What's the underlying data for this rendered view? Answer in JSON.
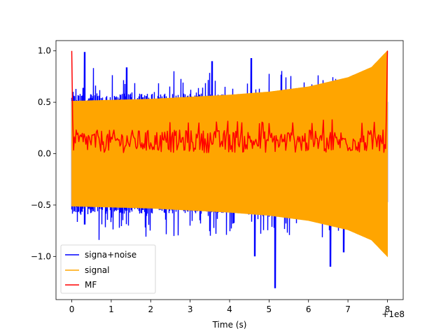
{
  "chart_data": {
    "type": "line",
    "title": "",
    "xlabel": "Time (s)",
    "ylabel": "",
    "x_offset_label": "+1e8",
    "xlim": [
      -0.4,
      8.4
    ],
    "ylim": [
      -1.42,
      1.1
    ],
    "x_ticks": [
      0,
      1,
      2,
      3,
      4,
      5,
      6,
      7,
      8
    ],
    "y_ticks": [
      1.0,
      0.5,
      0.0,
      -0.5,
      -1.0
    ],
    "y_tick_labels": [
      "1.0",
      "0.5",
      "0.0",
      "−0.5",
      "−1.0"
    ],
    "legend_position": "lower-left",
    "series": [
      {
        "name": "signa+noise",
        "color": "#0000ff",
        "style": "noisy oscillation, baseline amplitude ~0.5 with spikes",
        "x_range": [
          0,
          8
        ],
        "max": 1.0,
        "min": -1.32,
        "notable_spikes": [
          {
            "x": 0.3,
            "y": 0.64
          },
          {
            "x": 0.32,
            "y": -0.69
          },
          {
            "x": 0.32,
            "y": 0.99
          },
          {
            "x": 1.4,
            "y": 0.84
          },
          {
            "x": 3.55,
            "y": 0.9
          },
          {
            "x": 4.55,
            "y": 0.93
          },
          {
            "x": 4.63,
            "y": -1.0
          },
          {
            "x": 5.15,
            "y": -1.31
          },
          {
            "x": 6.55,
            "y": -1.1
          },
          {
            "x": 6.9,
            "y": -0.96
          }
        ]
      },
      {
        "name": "signal",
        "color": "#ffa500",
        "style": "dense chirp with growing envelope",
        "x_range": [
          0,
          8
        ],
        "envelope_points": [
          {
            "x": 0,
            "y": 0.51
          },
          {
            "x": 1,
            "y": 0.52
          },
          {
            "x": 2,
            "y": 0.53
          },
          {
            "x": 3,
            "y": 0.55
          },
          {
            "x": 4,
            "y": 0.57
          },
          {
            "x": 5,
            "y": 0.6
          },
          {
            "x": 6,
            "y": 0.65
          },
          {
            "x": 7,
            "y": 0.74
          },
          {
            "x": 7.6,
            "y": 0.84
          },
          {
            "x": 8,
            "y": 1.0
          }
        ]
      },
      {
        "name": "MF",
        "color": "#ff0000",
        "style": "noisy line around 0.1, peaks at edges",
        "x_range": [
          0,
          8
        ],
        "start": {
          "x": 0,
          "y": 1.0
        },
        "end": {
          "x": 8,
          "y": 1.0
        },
        "mean": 0.12,
        "range": [
          -0.02,
          0.33
        ]
      }
    ]
  }
}
